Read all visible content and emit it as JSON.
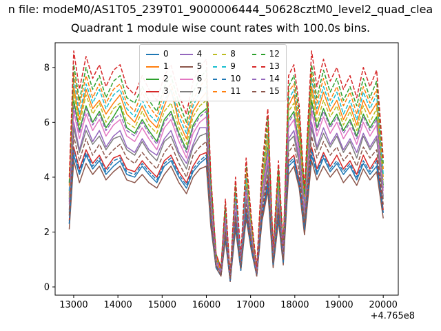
{
  "figure": {
    "title_line1": "n file: modeM0/AS1T05_239T01_9000006444_50628cztM0_level2_quad_clea"
  },
  "chart_data": {
    "type": "line",
    "title": "Quadrant 1 module wise count rates with 100.0s bins.",
    "xlabel": "",
    "ylabel": "",
    "x_axis_offset": "+4.765e8",
    "xlim": [
      12580,
      20340
    ],
    "ylim": [
      -0.3,
      8.9
    ],
    "x_ticks": [
      13000,
      14000,
      15000,
      16000,
      17000,
      18000,
      19000,
      20000
    ],
    "y_ticks": [
      0,
      2,
      4,
      6,
      8
    ],
    "grid": false,
    "legend": {
      "ncol": 4,
      "location": "upper center"
    },
    "x": [
      12900,
      13000,
      13130,
      13280,
      13430,
      13580,
      13730,
      13900,
      14050,
      14200,
      14380,
      14550,
      14700,
      14880,
      15050,
      15200,
      15380,
      15550,
      15700,
      15850,
      16000,
      16100,
      16220,
      16330,
      16430,
      16540,
      16660,
      16780,
      16900,
      17020,
      17140,
      17260,
      17390,
      17510,
      17630,
      17740,
      17860,
      17980,
      18100,
      18220,
      18380,
      18500,
      18650,
      18800,
      18950,
      19100,
      19250,
      19400,
      19550,
      19700,
      19850,
      20000
    ],
    "series": [
      {
        "name": "0",
        "color": "#1f77b4",
        "dash": false,
        "values": [
          2.3,
          4.8,
          4.1,
          4.8,
          4.3,
          4.6,
          4.1,
          4.4,
          4.6,
          4.1,
          4.0,
          4.4,
          4.1,
          3.8,
          4.4,
          4.6,
          4.0,
          3.6,
          4.2,
          4.5,
          4.7,
          2.3,
          0.7,
          0.4,
          1.8,
          0.2,
          2.3,
          0.6,
          2.7,
          1.4,
          0.4,
          2.5,
          3.7,
          0.8,
          2.6,
          0.9,
          4.4,
          4.6,
          3.7,
          2.0,
          4.8,
          4.1,
          4.7,
          4.2,
          4.5,
          4.1,
          4.4,
          3.9,
          4.5,
          4.1,
          4.4,
          2.7
        ]
      },
      {
        "name": "1",
        "color": "#ff7f0e",
        "dash": false,
        "values": [
          3.4,
          7.3,
          6.1,
          7.2,
          6.5,
          6.8,
          6.3,
          6.7,
          7.0,
          6.3,
          6.0,
          6.6,
          6.1,
          5.8,
          6.6,
          7.2,
          6.0,
          5.4,
          6.4,
          6.8,
          7.1,
          3.5,
          1.1,
          0.6,
          2.7,
          0.4,
          3.4,
          0.9,
          4.0,
          2.1,
          0.6,
          3.8,
          5.5,
          1.2,
          3.9,
          1.3,
          6.6,
          7.0,
          5.7,
          3.1,
          7.3,
          6.3,
          7.1,
          6.4,
          6.8,
          6.1,
          6.6,
          5.9,
          6.8,
          6.3,
          6.7,
          4.0
        ]
      },
      {
        "name": "2",
        "color": "#2ca02c",
        "dash": false,
        "values": [
          3.2,
          6.8,
          5.7,
          6.6,
          6.0,
          6.4,
          5.8,
          6.2,
          6.6,
          5.8,
          5.6,
          6.1,
          5.7,
          5.3,
          6.1,
          6.4,
          5.6,
          5.0,
          5.9,
          6.3,
          6.5,
          3.3,
          1.0,
          0.5,
          2.5,
          0.3,
          3.2,
          0.9,
          3.7,
          2.0,
          0.5,
          3.5,
          5.1,
          1.1,
          3.6,
          1.2,
          6.1,
          6.4,
          5.2,
          2.8,
          6.8,
          5.8,
          6.5,
          5.9,
          6.3,
          5.7,
          6.1,
          5.5,
          6.3,
          5.8,
          6.2,
          3.7
        ]
      },
      {
        "name": "3",
        "color": "#d62728",
        "dash": false,
        "values": [
          2.4,
          5.1,
          4.3,
          5.0,
          4.5,
          4.8,
          4.3,
          4.7,
          4.8,
          4.3,
          4.2,
          4.6,
          4.3,
          4.0,
          4.6,
          4.8,
          4.2,
          3.8,
          4.4,
          4.8,
          4.9,
          2.5,
          0.7,
          0.4,
          1.9,
          0.2,
          2.4,
          0.7,
          2.8,
          1.5,
          0.4,
          2.6,
          3.9,
          0.8,
          2.7,
          0.9,
          4.6,
          4.8,
          3.9,
          2.1,
          5.1,
          4.3,
          4.9,
          4.4,
          4.8,
          4.3,
          4.6,
          4.1,
          4.8,
          4.3,
          4.7,
          2.8
        ]
      },
      {
        "name": "4",
        "color": "#9467bd",
        "dash": false,
        "values": [
          2.8,
          6.0,
          5.0,
          5.9,
          5.3,
          5.7,
          5.1,
          5.5,
          5.7,
          5.1,
          4.9,
          5.4,
          5.0,
          4.8,
          5.4,
          5.7,
          4.9,
          4.5,
          5.2,
          5.8,
          5.8,
          2.9,
          0.9,
          0.5,
          2.2,
          0.3,
          2.8,
          0.8,
          3.3,
          1.7,
          0.5,
          3.1,
          4.6,
          1.0,
          3.2,
          1.1,
          5.4,
          5.7,
          4.7,
          2.5,
          6.0,
          5.1,
          5.8,
          5.2,
          5.6,
          5.0,
          5.4,
          4.9,
          5.6,
          5.1,
          5.5,
          3.3
        ]
      },
      {
        "name": "5",
        "color": "#8c564b",
        "dash": false,
        "values": [
          2.1,
          4.6,
          3.8,
          4.5,
          4.1,
          4.4,
          3.9,
          4.2,
          4.4,
          3.9,
          3.8,
          4.1,
          3.8,
          3.6,
          4.1,
          4.4,
          3.8,
          3.4,
          4.0,
          4.3,
          4.4,
          2.2,
          0.7,
          0.4,
          1.7,
          0.2,
          2.1,
          0.6,
          2.5,
          1.3,
          0.4,
          2.4,
          3.5,
          0.7,
          2.4,
          0.8,
          4.1,
          4.4,
          3.6,
          1.9,
          4.6,
          3.9,
          4.4,
          4.0,
          4.3,
          3.8,
          4.1,
          3.7,
          4.3,
          3.9,
          4.2,
          2.5
        ]
      },
      {
        "name": "6",
        "color": "#e377c2",
        "dash": false,
        "values": [
          3.0,
          6.4,
          5.4,
          6.3,
          5.7,
          6.1,
          5.5,
          5.9,
          6.1,
          5.5,
          5.3,
          5.8,
          5.4,
          5.0,
          5.8,
          6.1,
          5.3,
          4.7,
          5.6,
          6.0,
          6.2,
          3.1,
          0.9,
          0.5,
          2.4,
          0.3,
          3.0,
          0.8,
          3.5,
          1.9,
          0.5,
          3.3,
          4.8,
          1.0,
          3.4,
          1.1,
          5.8,
          6.1,
          4.9,
          2.7,
          6.4,
          5.5,
          6.2,
          5.6,
          6.0,
          5.4,
          5.8,
          5.2,
          6.0,
          5.5,
          5.9,
          3.5
        ]
      },
      {
        "name": "7",
        "color": "#7f7f7f",
        "dash": false,
        "values": [
          2.7,
          5.8,
          4.9,
          5.7,
          5.2,
          5.5,
          5.0,
          5.4,
          5.5,
          5.0,
          4.8,
          5.3,
          4.9,
          4.6,
          5.3,
          5.5,
          4.8,
          4.3,
          5.1,
          5.5,
          5.6,
          2.8,
          0.8,
          0.5,
          2.2,
          0.3,
          2.7,
          0.8,
          3.2,
          1.7,
          0.5,
          3.0,
          4.4,
          0.9,
          3.1,
          1.0,
          5.3,
          5.5,
          4.5,
          2.4,
          5.8,
          5.0,
          5.6,
          5.1,
          5.5,
          4.9,
          5.3,
          4.7,
          5.5,
          5.0,
          5.4,
          3.2
        ]
      },
      {
        "name": "8",
        "color": "#bcbd22",
        "dash": true,
        "values": [
          3.3,
          7.1,
          5.9,
          7.0,
          6.3,
          6.7,
          6.0,
          6.5,
          6.7,
          6.0,
          5.8,
          6.4,
          5.9,
          5.6,
          6.4,
          6.7,
          5.8,
          5.2,
          6.2,
          6.6,
          6.8,
          3.4,
          1.0,
          0.6,
          2.6,
          0.3,
          3.3,
          0.9,
          3.9,
          2.1,
          0.6,
          3.6,
          5.4,
          1.1,
          3.8,
          1.3,
          6.4,
          6.7,
          5.5,
          3.0,
          7.1,
          6.0,
          6.8,
          6.2,
          6.6,
          5.9,
          6.4,
          5.7,
          6.6,
          6.0,
          6.5,
          3.9
        ]
      },
      {
        "name": "9",
        "color": "#17becf",
        "dash": true,
        "values": [
          3.5,
          7.6,
          6.3,
          7.4,
          6.7,
          7.2,
          6.5,
          7.0,
          7.2,
          6.5,
          6.2,
          6.8,
          6.3,
          6.0,
          6.8,
          7.2,
          6.2,
          5.6,
          6.6,
          7.1,
          7.3,
          3.7,
          1.1,
          0.6,
          2.8,
          0.4,
          3.5,
          1.0,
          4.1,
          2.2,
          0.6,
          3.9,
          5.7,
          1.2,
          4.0,
          1.3,
          6.8,
          7.2,
          5.9,
          3.2,
          7.6,
          6.5,
          7.3,
          6.6,
          7.1,
          6.3,
          6.8,
          6.1,
          7.1,
          6.5,
          7.0,
          4.1
        ]
      },
      {
        "name": "10",
        "color": "#1f77b4",
        "dash": true,
        "values": [
          2.3,
          5.0,
          4.2,
          4.9,
          4.4,
          4.7,
          4.2,
          4.6,
          4.7,
          4.2,
          4.1,
          4.5,
          4.2,
          3.9,
          4.5,
          4.7,
          4.1,
          3.7,
          4.3,
          4.6,
          4.8,
          2.4,
          0.7,
          0.4,
          1.8,
          0.2,
          2.3,
          0.6,
          2.7,
          1.4,
          0.4,
          2.6,
          3.8,
          0.8,
          2.6,
          0.9,
          4.5,
          4.7,
          3.8,
          2.1,
          5.0,
          4.2,
          4.8,
          4.3,
          4.6,
          4.2,
          4.5,
          4.0,
          4.6,
          4.2,
          4.6,
          2.7
        ]
      },
      {
        "name": "11",
        "color": "#ff7f0e",
        "dash": true,
        "values": [
          3.7,
          7.8,
          6.6,
          7.7,
          6.9,
          7.4,
          6.7,
          7.2,
          7.4,
          6.7,
          6.4,
          7.1,
          6.6,
          6.2,
          7.1,
          7.4,
          6.4,
          5.8,
          6.8,
          7.3,
          7.6,
          3.8,
          1.1,
          0.6,
          2.9,
          0.4,
          3.7,
          1.0,
          4.3,
          2.3,
          0.6,
          4.0,
          5.9,
          1.3,
          4.2,
          1.4,
          7.1,
          7.4,
          6.0,
          3.3,
          7.8,
          6.7,
          7.6,
          6.8,
          7.3,
          6.6,
          7.1,
          6.3,
          7.3,
          6.7,
          7.2,
          4.3
        ]
      },
      {
        "name": "12",
        "color": "#2ca02c",
        "dash": true,
        "values": [
          3.8,
          8.1,
          6.8,
          8.0,
          7.2,
          7.7,
          6.9,
          7.5,
          7.7,
          6.9,
          6.7,
          7.3,
          6.8,
          6.4,
          7.3,
          7.7,
          6.7,
          6.0,
          7.1,
          7.6,
          7.9,
          3.9,
          1.2,
          0.7,
          3.0,
          0.4,
          3.8,
          1.0,
          4.5,
          2.4,
          0.7,
          4.2,
          6.2,
          1.3,
          4.3,
          1.4,
          7.3,
          7.7,
          6.3,
          3.4,
          8.1,
          6.9,
          7.9,
          7.1,
          7.6,
          6.8,
          7.3,
          6.6,
          7.6,
          6.9,
          7.5,
          4.5
        ]
      },
      {
        "name": "13",
        "color": "#d62728",
        "dash": true,
        "values": [
          4.0,
          8.6,
          7.2,
          8.4,
          7.6,
          8.1,
          7.3,
          7.9,
          8.1,
          7.3,
          7.0,
          7.7,
          7.2,
          6.8,
          7.7,
          8.1,
          7.0,
          6.3,
          7.5,
          8.0,
          8.3,
          4.1,
          1.2,
          0.7,
          3.2,
          0.4,
          4.0,
          1.1,
          4.7,
          2.5,
          0.7,
          4.4,
          6.5,
          1.4,
          4.6,
          1.5,
          7.7,
          8.1,
          6.6,
          3.6,
          8.6,
          7.3,
          8.3,
          7.5,
          8.0,
          7.2,
          7.7,
          6.9,
          8.0,
          7.3,
          7.9,
          4.7
        ]
      },
      {
        "name": "14",
        "color": "#9467bd",
        "dash": true,
        "values": [
          3.1,
          6.6,
          5.6,
          6.5,
          5.9,
          6.3,
          5.7,
          6.1,
          6.3,
          5.7,
          5.5,
          6.0,
          5.6,
          5.2,
          6.0,
          6.3,
          5.5,
          4.9,
          5.8,
          6.2,
          6.4,
          3.2,
          1.0,
          0.5,
          2.5,
          0.3,
          3.1,
          0.9,
          3.6,
          1.9,
          0.5,
          3.4,
          5.0,
          1.1,
          3.5,
          1.2,
          6.0,
          6.3,
          5.1,
          2.8,
          6.6,
          5.7,
          6.4,
          5.8,
          6.2,
          5.6,
          6.0,
          5.4,
          6.2,
          5.7,
          6.1,
          3.6
        ]
      },
      {
        "name": "15",
        "color": "#8c564b",
        "dash": true,
        "values": [
          2.6,
          5.5,
          4.6,
          5.4,
          4.8,
          5.2,
          4.7,
          5.0,
          5.2,
          4.7,
          4.5,
          4.9,
          4.6,
          4.3,
          4.9,
          5.2,
          4.5,
          4.0,
          4.8,
          5.1,
          5.3,
          2.6,
          0.8,
          0.4,
          2.0,
          0.3,
          2.6,
          0.7,
          3.0,
          1.6,
          0.4,
          2.8,
          4.1,
          0.9,
          2.9,
          1.0,
          4.9,
          5.2,
          4.2,
          2.3,
          5.5,
          4.7,
          5.3,
          4.8,
          5.1,
          4.6,
          4.9,
          4.4,
          5.1,
          4.7,
          5.0,
          3.0
        ]
      }
    ]
  }
}
